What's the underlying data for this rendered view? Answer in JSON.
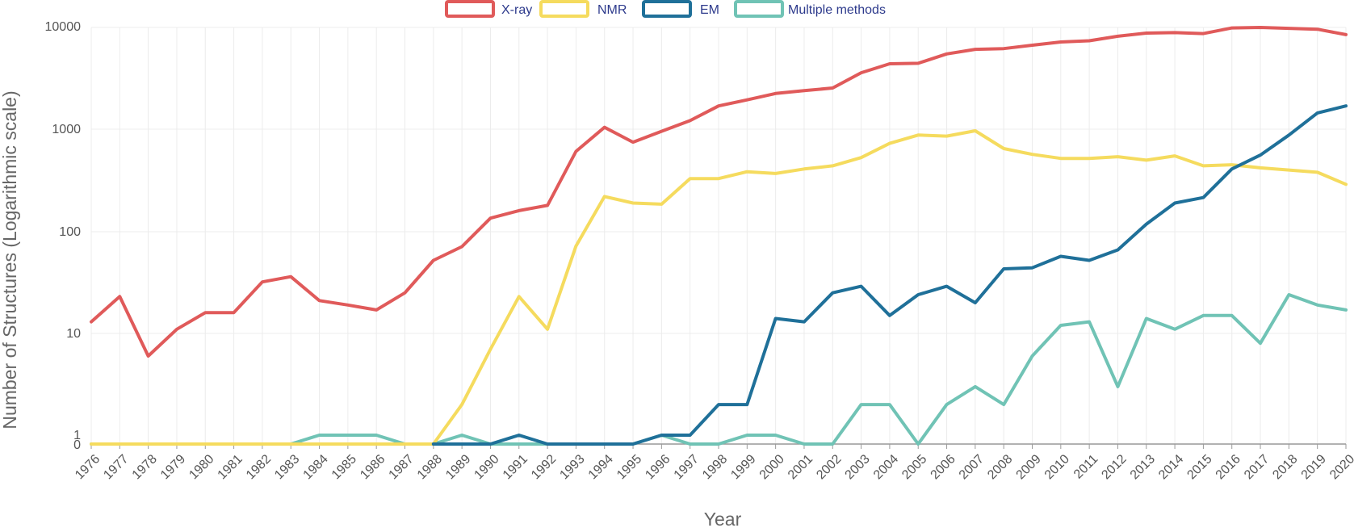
{
  "chart_data": {
    "type": "line",
    "xlabel": "Year",
    "ylabel": "Number of Structures (Logarithmic scale)",
    "yscale": "log",
    "ylim": [
      0,
      10000
    ],
    "yticks": [
      "0",
      "1",
      "10",
      "100",
      "1000",
      "10000"
    ],
    "grid": true,
    "legend_position": "top-center",
    "x": [
      1976,
      1977,
      1978,
      1979,
      1980,
      1981,
      1982,
      1983,
      1984,
      1985,
      1986,
      1987,
      1988,
      1989,
      1990,
      1991,
      1992,
      1993,
      1994,
      1995,
      1996,
      1997,
      1998,
      1999,
      2000,
      2001,
      2002,
      2003,
      2004,
      2005,
      2006,
      2007,
      2008,
      2009,
      2010,
      2011,
      2012,
      2013,
      2014,
      2015,
      2016,
      2017,
      2018,
      2019,
      2020
    ],
    "series": [
      {
        "name": "X-ray",
        "color": "#e05a5a",
        "values": [
          13,
          23,
          6,
          11,
          16,
          16,
          32,
          36,
          21,
          19,
          17,
          25,
          52,
          71,
          135,
          160,
          180,
          610,
          1050,
          750,
          960,
          1220,
          1700,
          1950,
          2250,
          2400,
          2550,
          3600,
          4400,
          4450,
          5500,
          6100,
          6200,
          6700,
          7200,
          7400,
          8200,
          8800,
          8900,
          8700,
          9900,
          10000,
          9800,
          9600,
          8500
        ]
      },
      {
        "name": "NMR",
        "color": "#f5db5e",
        "values": [
          0,
          0,
          0,
          0,
          0,
          0,
          0,
          0,
          0,
          0,
          0,
          0,
          0,
          2,
          7,
          23,
          11,
          72,
          220,
          190,
          185,
          330,
          330,
          385,
          370,
          410,
          440,
          530,
          730,
          880,
          860,
          970,
          650,
          570,
          520,
          520,
          540,
          500,
          550,
          440,
          450,
          420,
          400,
          380,
          290
        ]
      },
      {
        "name": "EM",
        "color": "#1f7099",
        "values": [
          null,
          null,
          null,
          null,
          null,
          null,
          null,
          null,
          null,
          null,
          null,
          null,
          0,
          0,
          0,
          1,
          0,
          0,
          0,
          0,
          1,
          1,
          2,
          2,
          14,
          13,
          25,
          29,
          15,
          24,
          29,
          20,
          43,
          44,
          57,
          52,
          66,
          118,
          190,
          215,
          410,
          560,
          880,
          1450,
          1700
        ]
      },
      {
        "name": "Multiple methods",
        "color": "#70c3b5",
        "values": [
          0,
          0,
          0,
          0,
          0,
          0,
          0,
          0,
          1,
          1,
          1,
          0,
          0,
          1,
          0,
          0,
          0,
          0,
          0,
          0,
          1,
          0,
          0,
          1,
          1,
          0,
          0,
          2,
          2,
          0,
          2,
          3,
          2,
          6,
          12,
          13,
          3,
          14,
          11,
          15,
          15,
          8,
          24,
          19,
          17
        ]
      }
    ]
  }
}
